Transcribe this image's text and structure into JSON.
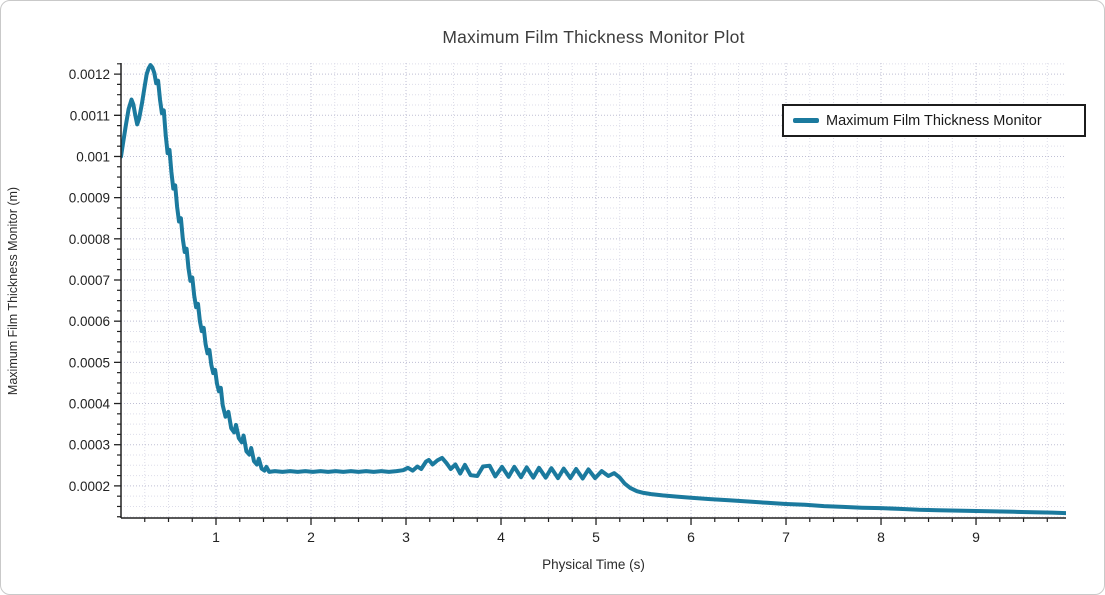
{
  "title": "Maximum Film Thickness Monitor Plot",
  "legend": {
    "label": "Maximum Film Thickness Monitor"
  },
  "colors": {
    "series": "#1b7a9e",
    "grid_major": "#bfbfd4",
    "grid_minor": "#dddde9",
    "axis": "#222222",
    "tick_label": "#222222"
  },
  "chart_data": {
    "type": "line",
    "title": "Maximum Film Thickness Monitor Plot",
    "xlabel": "Physical Time (s)",
    "ylabel": "Maximum Film Thickness Monitor (m)",
    "xlim": [
      0,
      9.947
    ],
    "ylim": [
      0.000122,
      0.001227
    ],
    "grid": true,
    "legend_position": "top-right",
    "x_ticks": [
      {
        "v": 1,
        "label": "1"
      },
      {
        "v": 2,
        "label": "2"
      },
      {
        "v": 3,
        "label": "3"
      },
      {
        "v": 4,
        "label": "4"
      },
      {
        "v": 5,
        "label": "5"
      },
      {
        "v": 6,
        "label": "6"
      },
      {
        "v": 7,
        "label": "7"
      },
      {
        "v": 8,
        "label": "8"
      },
      {
        "v": 9,
        "label": "9"
      }
    ],
    "x_minor_step": 0.25,
    "y_ticks": [
      {
        "v": 0.0002,
        "label": "0.0002"
      },
      {
        "v": 0.0003,
        "label": "0.0003"
      },
      {
        "v": 0.0004,
        "label": "0.0004"
      },
      {
        "v": 0.0005,
        "label": "0.0005"
      },
      {
        "v": 0.0006,
        "label": "0.0006"
      },
      {
        "v": 0.0007,
        "label": "0.0007"
      },
      {
        "v": 0.0008,
        "label": "0.0008"
      },
      {
        "v": 0.0009,
        "label": "0.0009"
      },
      {
        "v": 0.001,
        "label": "0.001"
      },
      {
        "v": 0.0011,
        "label": "0.0011"
      },
      {
        "v": 0.0012,
        "label": "0.0012"
      }
    ],
    "y_minor_step": 2.5e-05,
    "series": [
      {
        "name": "Maximum Film Thickness Monitor",
        "color": "#1b7a9e",
        "points": [
          [
            0,
            0.001
          ],
          [
            0.02,
            0.00103
          ],
          [
            0.05,
            0.001075
          ],
          [
            0.08,
            0.001115
          ],
          [
            0.11,
            0.001138
          ],
          [
            0.13,
            0.001126
          ],
          [
            0.15,
            0.0011
          ],
          [
            0.17,
            0.001078
          ],
          [
            0.19,
            0.001092
          ],
          [
            0.22,
            0.001128
          ],
          [
            0.25,
            0.001172
          ],
          [
            0.27,
            0.0012
          ],
          [
            0.29,
            0.001214
          ],
          [
            0.31,
            0.001222
          ],
          [
            0.33,
            0.001216
          ],
          [
            0.35,
            0.001203
          ],
          [
            0.37,
            0.001178
          ],
          [
            0.39,
            0.001184
          ],
          [
            0.41,
            0.001138
          ],
          [
            0.43,
            0.001105
          ],
          [
            0.45,
            0.001112
          ],
          [
            0.47,
            0.001052
          ],
          [
            0.49,
            0.001008
          ],
          [
            0.51,
            0.001016
          ],
          [
            0.53,
            0.000962
          ],
          [
            0.55,
            0.000922
          ],
          [
            0.57,
            0.00093
          ],
          [
            0.59,
            0.000878
          ],
          [
            0.61,
            0.000842
          ],
          [
            0.63,
            0.00085
          ],
          [
            0.65,
            0.0008
          ],
          [
            0.67,
            0.000768
          ],
          [
            0.69,
            0.000776
          ],
          [
            0.71,
            0.000728
          ],
          [
            0.73,
            0.000698
          ],
          [
            0.75,
            0.000706
          ],
          [
            0.77,
            0.000662
          ],
          [
            0.79,
            0.000634
          ],
          [
            0.81,
            0.000642
          ],
          [
            0.83,
            0.0006
          ],
          [
            0.85,
            0.000576
          ],
          [
            0.87,
            0.000584
          ],
          [
            0.89,
            0.000544
          ],
          [
            0.91,
            0.000522
          ],
          [
            0.93,
            0.00053
          ],
          [
            0.95,
            0.000494
          ],
          [
            0.97,
            0.000474
          ],
          [
            0.99,
            0.000482
          ],
          [
            1.01,
            0.000448
          ],
          [
            1.03,
            0.00043
          ],
          [
            1.05,
            0.000438
          ],
          [
            1.07,
            0.000396
          ],
          [
            1.1,
            0.000368
          ],
          [
            1.13,
            0.00038
          ],
          [
            1.16,
            0.00034
          ],
          [
            1.19,
            0.00033
          ],
          [
            1.21,
            0.000348
          ],
          [
            1.24,
            0.000316
          ],
          [
            1.27,
            0.000306
          ],
          [
            1.29,
            0.000322
          ],
          [
            1.32,
            0.000284
          ],
          [
            1.35,
            0.000276
          ],
          [
            1.37,
            0.000292
          ],
          [
            1.4,
            0.00026
          ],
          [
            1.43,
            0.000252
          ],
          [
            1.45,
            0.000266
          ],
          [
            1.48,
            0.000242
          ],
          [
            1.51,
            0.000237
          ],
          [
            1.53,
            0.000246
          ],
          [
            1.56,
            0.000234
          ],
          [
            1.62,
            0.000236
          ],
          [
            1.7,
            0.000234
          ],
          [
            1.78,
            0.000236
          ],
          [
            1.86,
            0.000234
          ],
          [
            1.94,
            0.000236
          ],
          [
            2.02,
            0.000234
          ],
          [
            2.1,
            0.000236
          ],
          [
            2.18,
            0.000234
          ],
          [
            2.26,
            0.000236
          ],
          [
            2.34,
            0.000234
          ],
          [
            2.42,
            0.000236
          ],
          [
            2.5,
            0.000234
          ],
          [
            2.58,
            0.000236
          ],
          [
            2.66,
            0.000234
          ],
          [
            2.74,
            0.000236
          ],
          [
            2.82,
            0.000234
          ],
          [
            2.9,
            0.000236
          ],
          [
            2.97,
            0.000238
          ],
          [
            3.02,
            0.000244
          ],
          [
            3.07,
            0.000237
          ],
          [
            3.12,
            0.000247
          ],
          [
            3.16,
            0.000241
          ],
          [
            3.21,
            0.000259
          ],
          [
            3.24,
            0.000263
          ],
          [
            3.28,
            0.000252
          ],
          [
            3.33,
            0.000262
          ],
          [
            3.38,
            0.000268
          ],
          [
            3.43,
            0.000254
          ],
          [
            3.47,
            0.000241
          ],
          [
            3.52,
            0.000252
          ],
          [
            3.57,
            0.00023
          ],
          [
            3.62,
            0.000251
          ],
          [
            3.68,
            0.000226
          ],
          [
            3.75,
            0.000224
          ],
          [
            3.81,
            0.000247
          ],
          [
            3.88,
            0.000249
          ],
          [
            3.94,
            0.000223
          ],
          [
            4.01,
            0.000246
          ],
          [
            4.08,
            0.000222
          ],
          [
            4.14,
            0.000246
          ],
          [
            4.21,
            0.000221
          ],
          [
            4.27,
            0.000245
          ],
          [
            4.34,
            0.00022
          ],
          [
            4.4,
            0.000244
          ],
          [
            4.47,
            0.00022
          ],
          [
            4.53,
            0.000243
          ],
          [
            4.6,
            0.000219
          ],
          [
            4.66,
            0.000242
          ],
          [
            4.73,
            0.000219
          ],
          [
            4.79,
            0.000241
          ],
          [
            4.86,
            0.000218
          ],
          [
            4.92,
            0.00024
          ],
          [
            4.99,
            0.000219
          ],
          [
            5.06,
            0.000236
          ],
          [
            5.13,
            0.000224
          ],
          [
            5.19,
            0.000231
          ],
          [
            5.25,
            0.00022
          ],
          [
            5.3,
            0.000206
          ],
          [
            5.36,
            0.000195
          ],
          [
            5.43,
            0.000187
          ],
          [
            5.5,
            0.000183
          ],
          [
            5.58,
            0.00018
          ],
          [
            5.7,
            0.000177
          ],
          [
            5.85,
            0.000174
          ],
          [
            6,
            0.000171
          ],
          [
            6.2,
            0.000168
          ],
          [
            6.4,
            0.000165
          ],
          [
            6.6,
            0.000162
          ],
          [
            6.8,
            0.000159
          ],
          [
            7,
            0.000156
          ],
          [
            7.2,
            0.000154
          ],
          [
            7.4,
            0.000151
          ],
          [
            7.6,
            0.000149
          ],
          [
            7.8,
            0.000147
          ],
          [
            8,
            0.000146
          ],
          [
            8.2,
            0.000144
          ],
          [
            8.4,
            0.000142
          ],
          [
            8.6,
            0.000141
          ],
          [
            8.8,
            0.00014
          ],
          [
            9,
            0.000139
          ],
          [
            9.2,
            0.000138
          ],
          [
            9.4,
            0.000137
          ],
          [
            9.6,
            0.000136
          ],
          [
            9.8,
            0.000135
          ],
          [
            9.95,
            0.000134
          ]
        ]
      }
    ]
  }
}
